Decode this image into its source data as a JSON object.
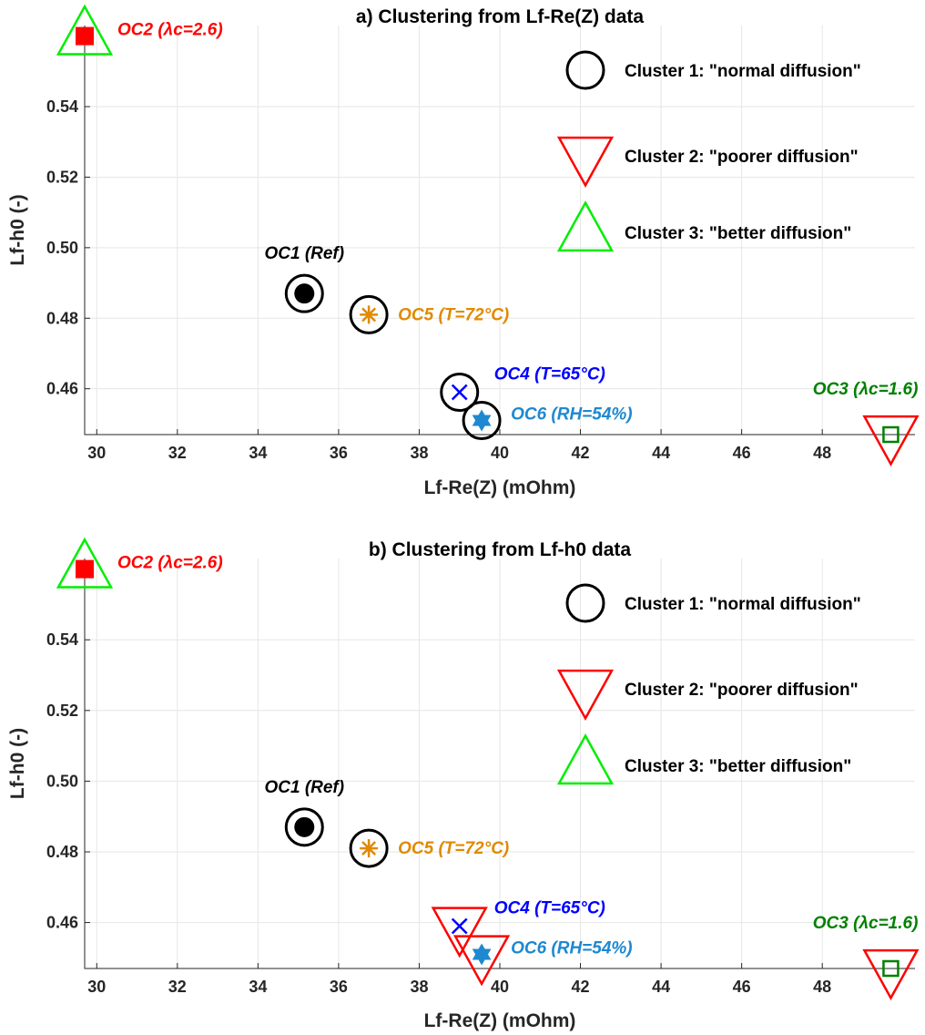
{
  "colors": {
    "cluster1": "#000000",
    "cluster2": "#ff0000",
    "cluster3": "#00ee00",
    "OC1": "#000000",
    "OC2": "#ff0000",
    "OC3": "#008000",
    "OC4": "#0000ff",
    "OC5": "#e08a00",
    "OC6": "#1e88d0"
  },
  "chart_data": [
    {
      "type": "scatter",
      "title": "a) Clustering from Lf-Re(Z) data",
      "xlabel": "Lf-Re(Z) (mOhm)",
      "ylabel": "Lf-h0 (-)",
      "xlim": [
        29.7,
        50.3
      ],
      "ylim": [
        0.447,
        0.563
      ],
      "xticks": [
        "30",
        "32",
        "34",
        "36",
        "38",
        "40",
        "42",
        "44",
        "46",
        "48"
      ],
      "yticks": [
        "0.46",
        "0.48",
        "0.50",
        "0.52",
        "0.54"
      ],
      "grid": true,
      "legend": {
        "placement": "top-right",
        "entries": [
          {
            "marker": "circle",
            "cluster": 1,
            "label": "Cluster 1: \"normal diffusion\""
          },
          {
            "marker": "triangle-down",
            "cluster": 2,
            "label": "Cluster 2: \"poorer diffusion\""
          },
          {
            "marker": "triangle-up",
            "cluster": 3,
            "label": "Cluster 3: \"better diffusion\""
          }
        ]
      },
      "points": [
        {
          "id": "OC1",
          "x": 35.15,
          "y": 0.487,
          "marker": "filled-circle",
          "cluster": 1,
          "label": "OC1 (Ref)"
        },
        {
          "id": "OC2",
          "x": 29.7,
          "y": 0.56,
          "marker": "filled-square",
          "cluster": 3,
          "label": "OC2 (λc=2.6)"
        },
        {
          "id": "OC3",
          "x": 49.7,
          "y": 0.447,
          "marker": "open-square",
          "cluster": 2,
          "label": "OC3 (λc=1.6)"
        },
        {
          "id": "OC4",
          "x": 39.0,
          "y": 0.459,
          "marker": "x",
          "cluster": 1,
          "label": "OC4 (T=65°C)"
        },
        {
          "id": "OC5",
          "x": 36.75,
          "y": 0.481,
          "marker": "asterisk",
          "cluster": 1,
          "label": "OC5 (T=72°C)"
        },
        {
          "id": "OC6",
          "x": 39.55,
          "y": 0.451,
          "marker": "hexagram",
          "cluster": 1,
          "label": "OC6 (RH=54%)"
        }
      ]
    },
    {
      "type": "scatter",
      "title": "b) Clustering from Lf-h0 data",
      "xlabel": "Lf-Re(Z) (mOhm)",
      "ylabel": "Lf-h0 (-)",
      "xlim": [
        29.7,
        50.3
      ],
      "ylim": [
        0.447,
        0.563
      ],
      "xticks": [
        "30",
        "32",
        "34",
        "36",
        "38",
        "40",
        "42",
        "44",
        "46",
        "48"
      ],
      "yticks": [
        "0.46",
        "0.48",
        "0.50",
        "0.52",
        "0.54"
      ],
      "grid": true,
      "legend": {
        "placement": "top-right",
        "entries": [
          {
            "marker": "circle",
            "cluster": 1,
            "label": "Cluster 1: \"normal diffusion\""
          },
          {
            "marker": "triangle-down",
            "cluster": 2,
            "label": "Cluster 2: \"poorer diffusion\""
          },
          {
            "marker": "triangle-up",
            "cluster": 3,
            "label": "Cluster 3: \"better diffusion\""
          }
        ]
      },
      "points": [
        {
          "id": "OC1",
          "x": 35.15,
          "y": 0.487,
          "marker": "filled-circle",
          "cluster": 1,
          "label": "OC1 (Ref)"
        },
        {
          "id": "OC2",
          "x": 29.7,
          "y": 0.56,
          "marker": "filled-square",
          "cluster": 3,
          "label": "OC2 (λc=2.6)"
        },
        {
          "id": "OC3",
          "x": 49.7,
          "y": 0.447,
          "marker": "open-square",
          "cluster": 2,
          "label": "OC3 (λc=1.6)"
        },
        {
          "id": "OC4",
          "x": 39.0,
          "y": 0.459,
          "marker": "x",
          "cluster": 2,
          "label": "OC4 (T=65°C)"
        },
        {
          "id": "OC5",
          "x": 36.75,
          "y": 0.481,
          "marker": "asterisk",
          "cluster": 1,
          "label": "OC5 (T=72°C)"
        },
        {
          "id": "OC6",
          "x": 39.55,
          "y": 0.451,
          "marker": "hexagram",
          "cluster": 2,
          "label": "OC6 (RH=54%)"
        }
      ]
    }
  ]
}
